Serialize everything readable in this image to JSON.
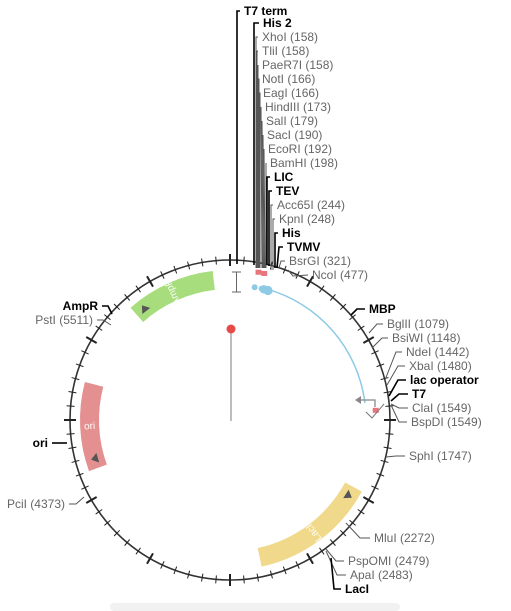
{
  "plasmid": {
    "features": [
      {
        "name": "AmpR",
        "start": 5750,
        "end": 6380,
        "color": "#a7dd7c",
        "strand": "reverse"
      },
      {
        "name": "ori",
        "start": 4515,
        "end": 5140,
        "color": "#e59090",
        "strand": "reverse"
      },
      {
        "name": "LacI",
        "start": 2140,
        "end": 3030,
        "color": "#f0d98a",
        "strand": "reverse"
      }
    ],
    "labels": [
      {
        "text": "T7 term",
        "bold": true
      },
      {
        "text": "His 2",
        "bold": true
      },
      {
        "text": "XhoI (158)",
        "bold": false
      },
      {
        "text": "TliI (158)",
        "bold": false
      },
      {
        "text": "PaeR7I (158)",
        "bold": false
      },
      {
        "text": "NotI (166)",
        "bold": false
      },
      {
        "text": "EagI (166)",
        "bold": false
      },
      {
        "text": "HindIII (173)",
        "bold": false
      },
      {
        "text": "SalI (179)",
        "bold": false
      },
      {
        "text": "SacI (190)",
        "bold": false
      },
      {
        "text": "EcoRI (192)",
        "bold": false
      },
      {
        "text": "BamHI (198)",
        "bold": false
      },
      {
        "text": "LIC",
        "bold": true
      },
      {
        "text": "TEV",
        "bold": true
      },
      {
        "text": "Acc65I (244)",
        "bold": false
      },
      {
        "text": "KpnI (248)",
        "bold": false
      },
      {
        "text": "His",
        "bold": true
      },
      {
        "text": "TVMV",
        "bold": true
      },
      {
        "text": "BsrGI (321)",
        "bold": false
      },
      {
        "text": "NcoI (477)",
        "bold": false
      },
      {
        "text": "MBP",
        "bold": true
      },
      {
        "text": "BglII (1079)",
        "bold": false
      },
      {
        "text": "BsiWI (1148)",
        "bold": false
      },
      {
        "text": "NdeI (1442)",
        "bold": false
      },
      {
        "text": "XbaI (1480)",
        "bold": false
      },
      {
        "text": "lac operator",
        "bold": true
      },
      {
        "text": "T7",
        "bold": true
      },
      {
        "text": "ClaI (1549)",
        "bold": false
      },
      {
        "text": "BspDI (1549)",
        "bold": false
      },
      {
        "text": "SphI (1747)",
        "bold": false
      },
      {
        "text": "MluI (2272)",
        "bold": false
      },
      {
        "text": "PspOMI (2479)",
        "bold": false
      },
      {
        "text": "ApaI (2483)",
        "bold": false
      },
      {
        "text": "LacI",
        "bold": true
      },
      {
        "text": "AmpR",
        "bold": true
      },
      {
        "text": "PstI (5511)",
        "bold": false
      },
      {
        "text": "ori",
        "bold": true
      },
      {
        "text": "PciI (4373)",
        "bold": false
      }
    ],
    "colors": {
      "backbone": "#333333",
      "mbp_arc": "#8ecae6",
      "cut_marker": "#e8747c",
      "origin_dot": "#e84a4a",
      "pointer_line": "#555555"
    }
  }
}
